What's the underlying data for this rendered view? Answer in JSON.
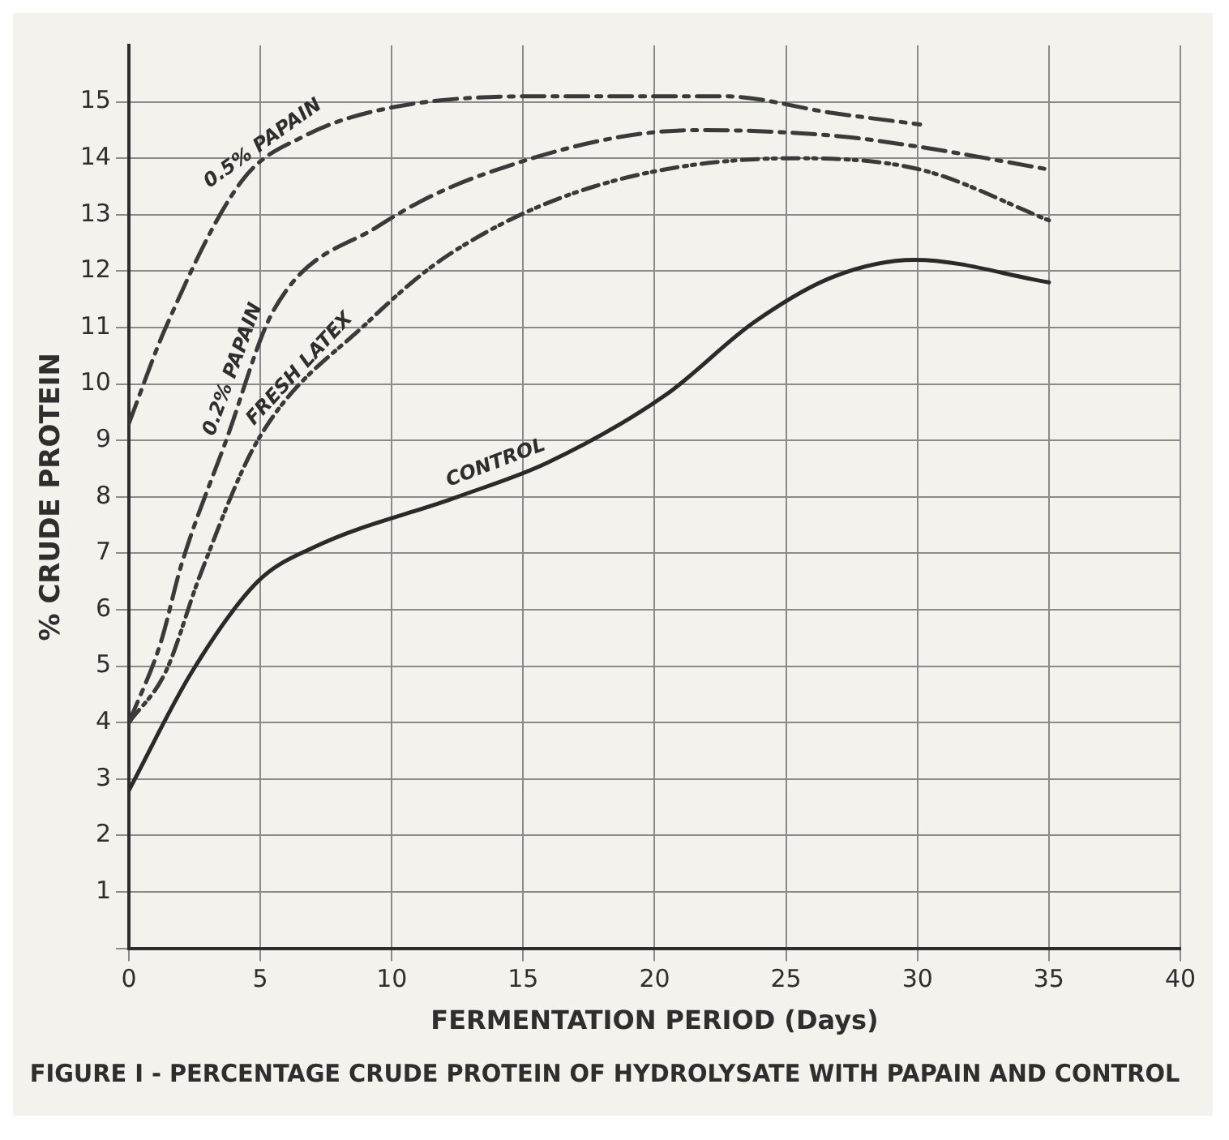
{
  "chart_data": {
    "type": "line",
    "title": "FIGURE I - PERCENTAGE CRUDE PROTEIN OF HYDROLYSATE WITH PAPAIN AND CONTROL",
    "xlabel": "FERMENTATION PERIOD (Days)",
    "ylabel": "% CRUDE PROTEIN",
    "series": [
      {
        "name": "0.5% PAPAIN",
        "color": "#3a3a3a",
        "line_style": "dashed",
        "x": [
          0,
          1.4,
          4.3,
          6.7,
          10,
          15.9,
          22.6,
          26.8,
          30.1
        ],
        "values": [
          9.3,
          11.0,
          13.6,
          14.4,
          14.9,
          15.1,
          15.1,
          14.8,
          14.6
        ]
      },
      {
        "name": "0.2% PAPAIN",
        "color": "#3a3a3a",
        "line_style": "dashed",
        "x": [
          0,
          1.2,
          2.0,
          3.7,
          5.5,
          9.5,
          13.4,
          21.6,
          26.8,
          30.1,
          35
        ],
        "values": [
          4.0,
          5.4,
          6.8,
          9.0,
          11.3,
          12.8,
          13.7,
          14.5,
          14.4,
          14.2,
          13.8
        ]
      },
      {
        "name": "FRESH LATEX",
        "color": "#3a3a3a",
        "line_style": "dotted",
        "x": [
          0,
          1.4,
          2.7,
          4.9,
          9.1,
          12.2,
          17.7,
          25.3,
          30.1,
          35
        ],
        "values": [
          4.0,
          4.9,
          6.6,
          9.0,
          11.1,
          12.3,
          13.5,
          14.0,
          13.8,
          12.9
        ]
      },
      {
        "name": "CONTROL",
        "color": "#2a2a2a",
        "line_style": "solid",
        "x": [
          0,
          2.4,
          4.9,
          7,
          12.5,
          15.9,
          20.4,
          23.8,
          26.8,
          29.9,
          35
        ],
        "values": [
          2.8,
          4.9,
          6.5,
          7.1,
          8.0,
          8.6,
          9.8,
          11.1,
          11.9,
          12.2,
          11.8
        ]
      }
    ],
    "xlim": [
      0,
      40
    ],
    "xticks": [
      0,
      5,
      10,
      15,
      20,
      25,
      30,
      35,
      40
    ],
    "ylim": [
      0,
      16
    ],
    "yticks": [
      {
        "value": 0,
        "label": null
      },
      1,
      2,
      3,
      4,
      5,
      6,
      7,
      8,
      9,
      10,
      11,
      12,
      13,
      14,
      15
    ],
    "grid": true,
    "legend": false,
    "marker": "none"
  }
}
